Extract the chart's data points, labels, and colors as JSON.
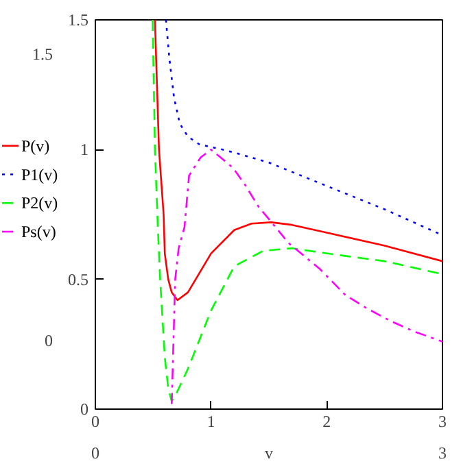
{
  "chart_data": {
    "type": "line",
    "xlabel": "v",
    "xlim": [
      0,
      3
    ],
    "ylim": [
      0,
      1.5
    ],
    "xticks": [
      0,
      1,
      2,
      3
    ],
    "yticks": [
      0,
      0.5,
      1,
      1.5
    ],
    "grid": false,
    "legend": "left",
    "marker": "none",
    "annotations": [
      "1.5",
      "0",
      "0",
      "3"
    ],
    "series": [
      {
        "name": "P(v)",
        "color": "#ff0000",
        "line_style": "solid",
        "x": [
          0.515,
          0.55,
          0.59,
          0.6,
          0.63,
          0.66,
          0.71,
          0.8,
          1.0,
          1.2,
          1.35,
          1.52,
          1.7,
          2.0,
          2.5,
          3.0
        ],
        "values": [
          1.5,
          1.0,
          0.75,
          0.6,
          0.5,
          0.45,
          0.42,
          0.45,
          0.6,
          0.69,
          0.715,
          0.72,
          0.71,
          0.68,
          0.63,
          0.57
        ]
      },
      {
        "name": "P1(v)",
        "color": "#0000ff",
        "line_style": "dotted",
        "x": [
          0.61,
          0.64,
          0.68,
          0.73,
          0.8,
          0.9,
          1.0,
          1.1,
          1.19,
          1.5,
          2.0,
          2.5,
          3.0
        ],
        "values": [
          1.5,
          1.35,
          1.2,
          1.1,
          1.05,
          1.02,
          1.01,
          1.0,
          0.99,
          0.95,
          0.86,
          0.77,
          0.67
        ]
      },
      {
        "name": "P2(v)",
        "color": "#00ff00",
        "line_style": "dashed",
        "x": [
          0.495,
          0.515,
          0.54,
          0.56,
          0.6,
          0.63,
          0.66,
          0.7,
          0.8,
          1.0,
          1.2,
          1.45,
          1.7,
          2.0,
          2.5,
          3.0
        ],
        "values": [
          1.5,
          1.0,
          0.7,
          0.5,
          0.2,
          0.08,
          0.03,
          0.06,
          0.155,
          0.38,
          0.55,
          0.61,
          0.62,
          0.6,
          0.57,
          0.52
        ]
      },
      {
        "name": "Ps(v)",
        "color": "#ff00ff",
        "line_style": "dashdot",
        "x": [
          0.66,
          0.69,
          0.72,
          0.77,
          0.81,
          0.91,
          1.0,
          1.19,
          1.3,
          1.41,
          1.56,
          1.67,
          1.94,
          2.16,
          2.34,
          2.55,
          2.75,
          3.0
        ],
        "values": [
          0.02,
          0.5,
          0.62,
          0.7,
          0.9,
          0.97,
          1.0,
          0.93,
          0.86,
          0.78,
          0.7,
          0.64,
          0.54,
          0.44,
          0.39,
          0.34,
          0.3,
          0.26
        ]
      }
    ]
  }
}
